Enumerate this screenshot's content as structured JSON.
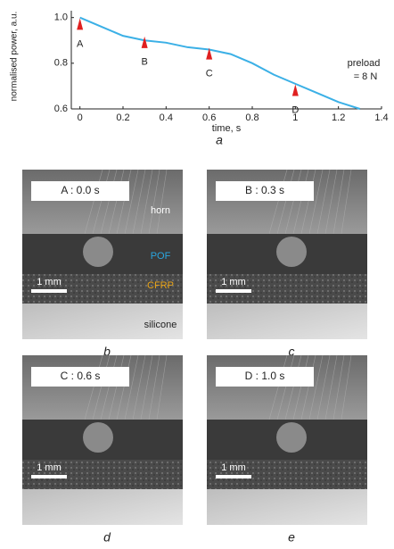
{
  "chart_data": {
    "type": "line",
    "panel_label": "a",
    "x_label": "time, s",
    "y_label": "normalised power, a.u.",
    "x": [
      0,
      0.1,
      0.2,
      0.3,
      0.4,
      0.5,
      0.6,
      0.7,
      0.8,
      0.9,
      1.0,
      1.1,
      1.2,
      1.3
    ],
    "values": [
      1.0,
      0.96,
      0.92,
      0.9,
      0.89,
      0.87,
      0.86,
      0.84,
      0.8,
      0.75,
      0.71,
      0.67,
      0.63,
      0.6
    ],
    "color": "#3bb0e6",
    "xlim": [
      -0.04,
      1.4
    ],
    "xticks": [
      0,
      0.2,
      0.4,
      0.6,
      0.8,
      1,
      1.2,
      1.4
    ],
    "ylim": [
      0.6,
      1.03
    ],
    "yticks": [
      0.6,
      0.8,
      {
        "value": 1,
        "label": "1.0"
      }
    ],
    "markers": [
      {
        "label": "A",
        "x": 0,
        "y": 0.97,
        "color": "#e02020"
      },
      {
        "label": "B",
        "x": 0.3,
        "y": 0.89,
        "color": "#e02020"
      },
      {
        "label": "C",
        "x": 0.6,
        "y": 0.84,
        "color": "#e02020"
      },
      {
        "label": "D",
        "x": 1.0,
        "y": 0.68,
        "color": "#e02020"
      }
    ],
    "annotation": [
      "preload",
      "= 8 N"
    ]
  },
  "panels": [
    {
      "letter": "b",
      "caption": "A : 0.0 s",
      "scale": "1 mm",
      "layers": [
        {
          "text": "horn",
          "color": "#ffffff"
        },
        {
          "text": "POF",
          "color": "#2aa7e0"
        },
        {
          "text": "CFRP",
          "color": "#e8a317"
        },
        {
          "text": "silicone",
          "color": "#222222"
        }
      ]
    },
    {
      "letter": "c",
      "caption": "B : 0.3 s",
      "scale": "1 mm"
    },
    {
      "letter": "d",
      "caption": "C : 0.6 s",
      "scale": "1 mm"
    },
    {
      "letter": "e",
      "caption": "D : 1.0 s",
      "scale": "1 mm"
    }
  ]
}
